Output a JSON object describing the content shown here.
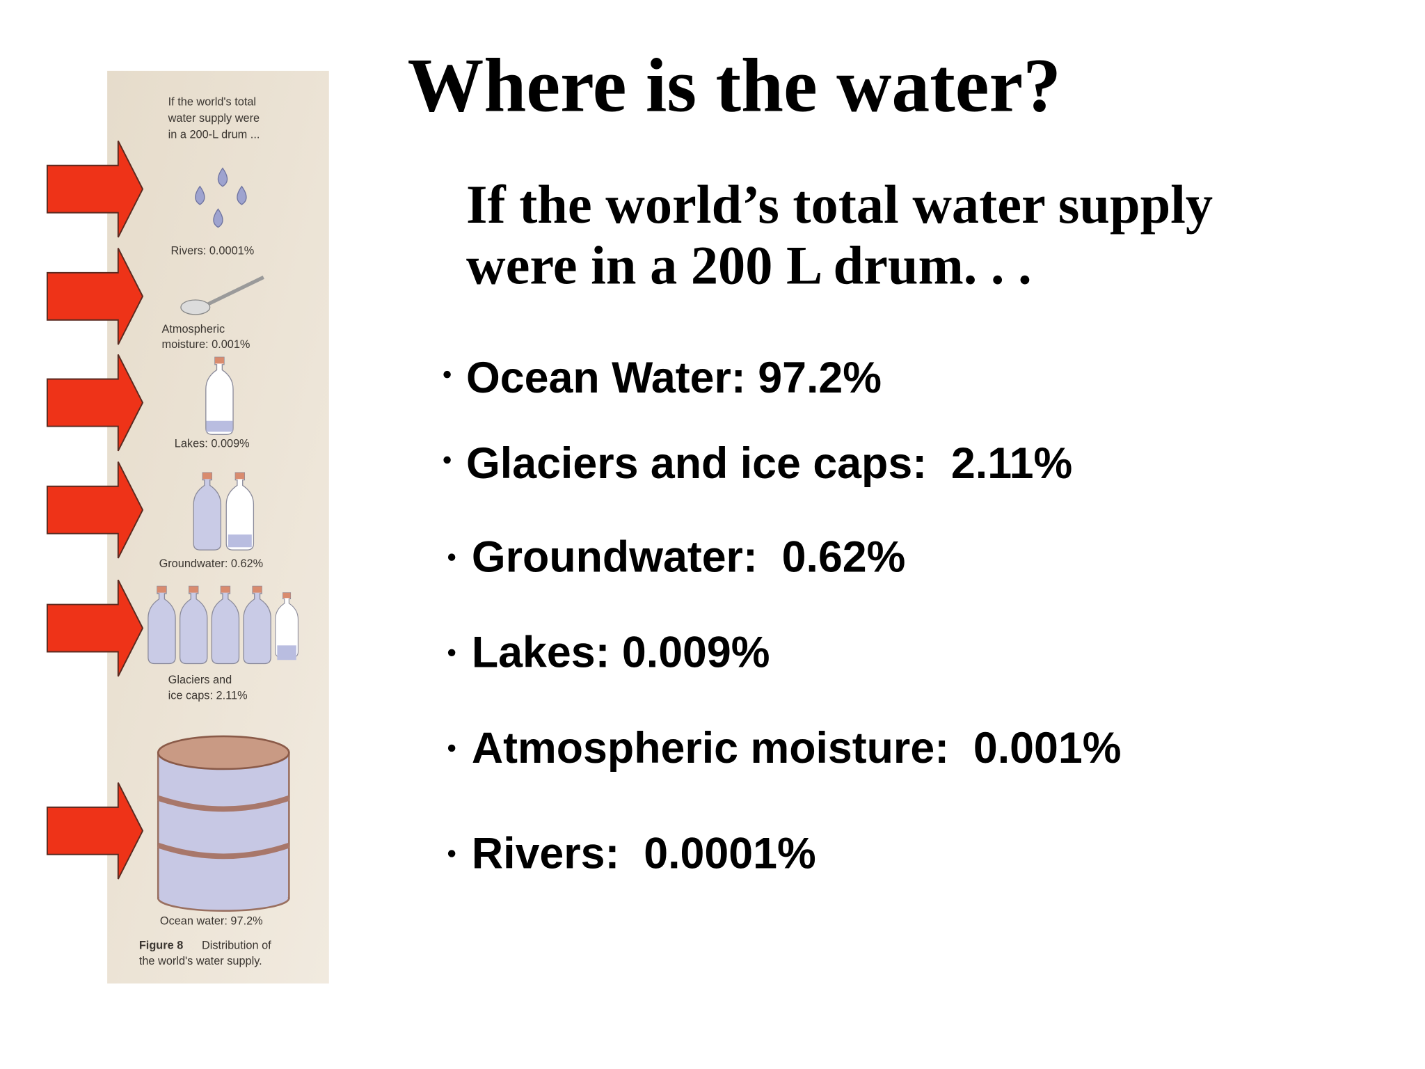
{
  "title": "Where is the water?",
  "subtitle": [
    "If the world’s total water supply",
    "were in a 200 L drum. . ."
  ],
  "bullets": [
    "Ocean Water: 97.2%",
    "Glaciers and ice caps:  2.11%",
    "Groundwater:  0.62%",
    "Lakes: 0.009%",
    "Atmospheric moisture:  0.001%",
    "Rivers:  0.0001%"
  ],
  "figure": {
    "intro": [
      "If the world's total",
      "water supply were",
      "in a 200-L drum ..."
    ],
    "rivers": [
      "Rivers: 0.0001%"
    ],
    "atmosphere": [
      "Atmospheric",
      "moisture: 0.001%"
    ],
    "lakes": [
      "Lakes: 0.009%"
    ],
    "groundwater": [
      "Groundwater: 0.62%"
    ],
    "glaciers": [
      "Glaciers and",
      "ice caps: 2.11%"
    ],
    "ocean": [
      "Ocean water: 97.2%"
    ],
    "caption_label": "Figure 8",
    "caption": [
      "Distribution of",
      "the world's water supply."
    ]
  }
}
